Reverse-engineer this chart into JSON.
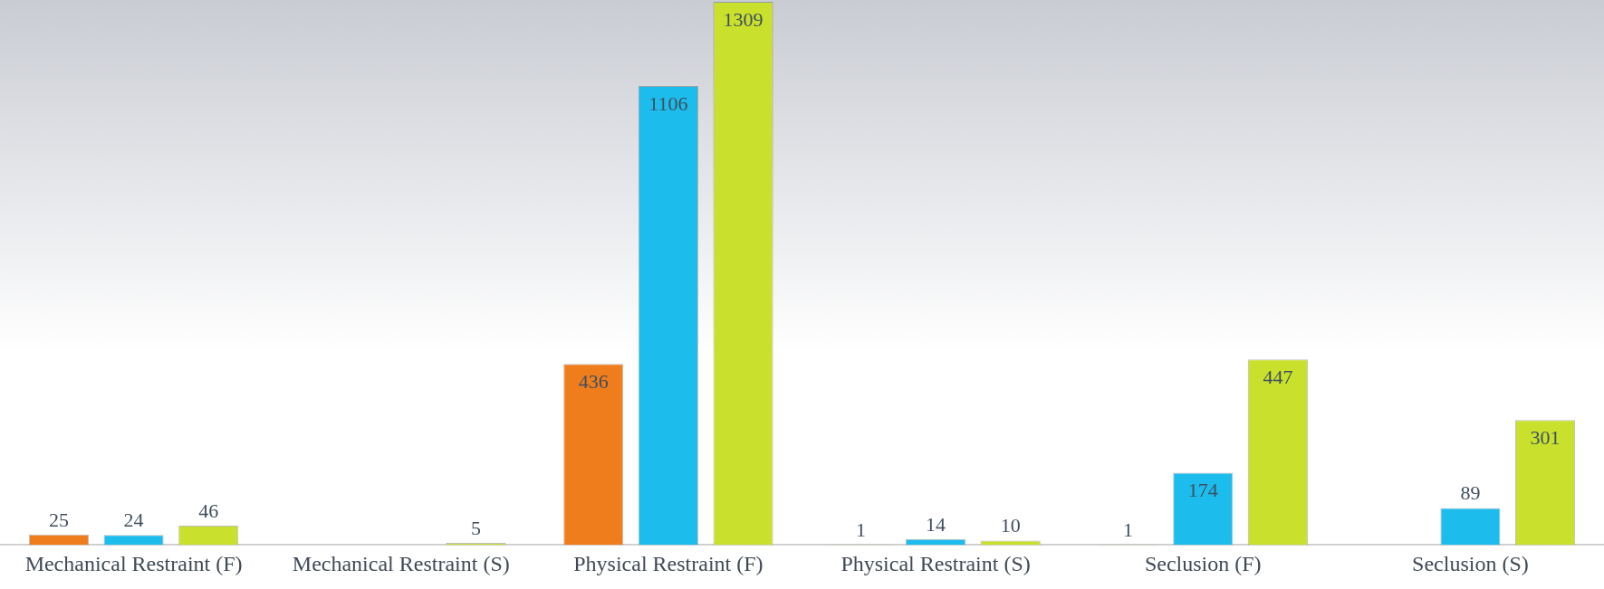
{
  "chart_data": {
    "type": "bar",
    "categories": [
      "Mechanical Restraint (F)",
      "Mechanical Restraint (S)",
      "Physical Restraint (F)",
      "Physical Restraint (S)",
      "Seclusion (F)",
      "Seclusion (S)"
    ],
    "series": [
      {
        "color": "#f07d1c",
        "values": [
          25,
          null,
          436,
          1,
          1,
          null
        ]
      },
      {
        "color": "#1cbcec",
        "values": [
          24,
          null,
          1106,
          14,
          174,
          89
        ]
      },
      {
        "color": "#c9e02c",
        "values": [
          46,
          5,
          1309,
          10,
          447,
          301
        ]
      }
    ],
    "data_labels": true,
    "grid": false,
    "legend": false
  }
}
